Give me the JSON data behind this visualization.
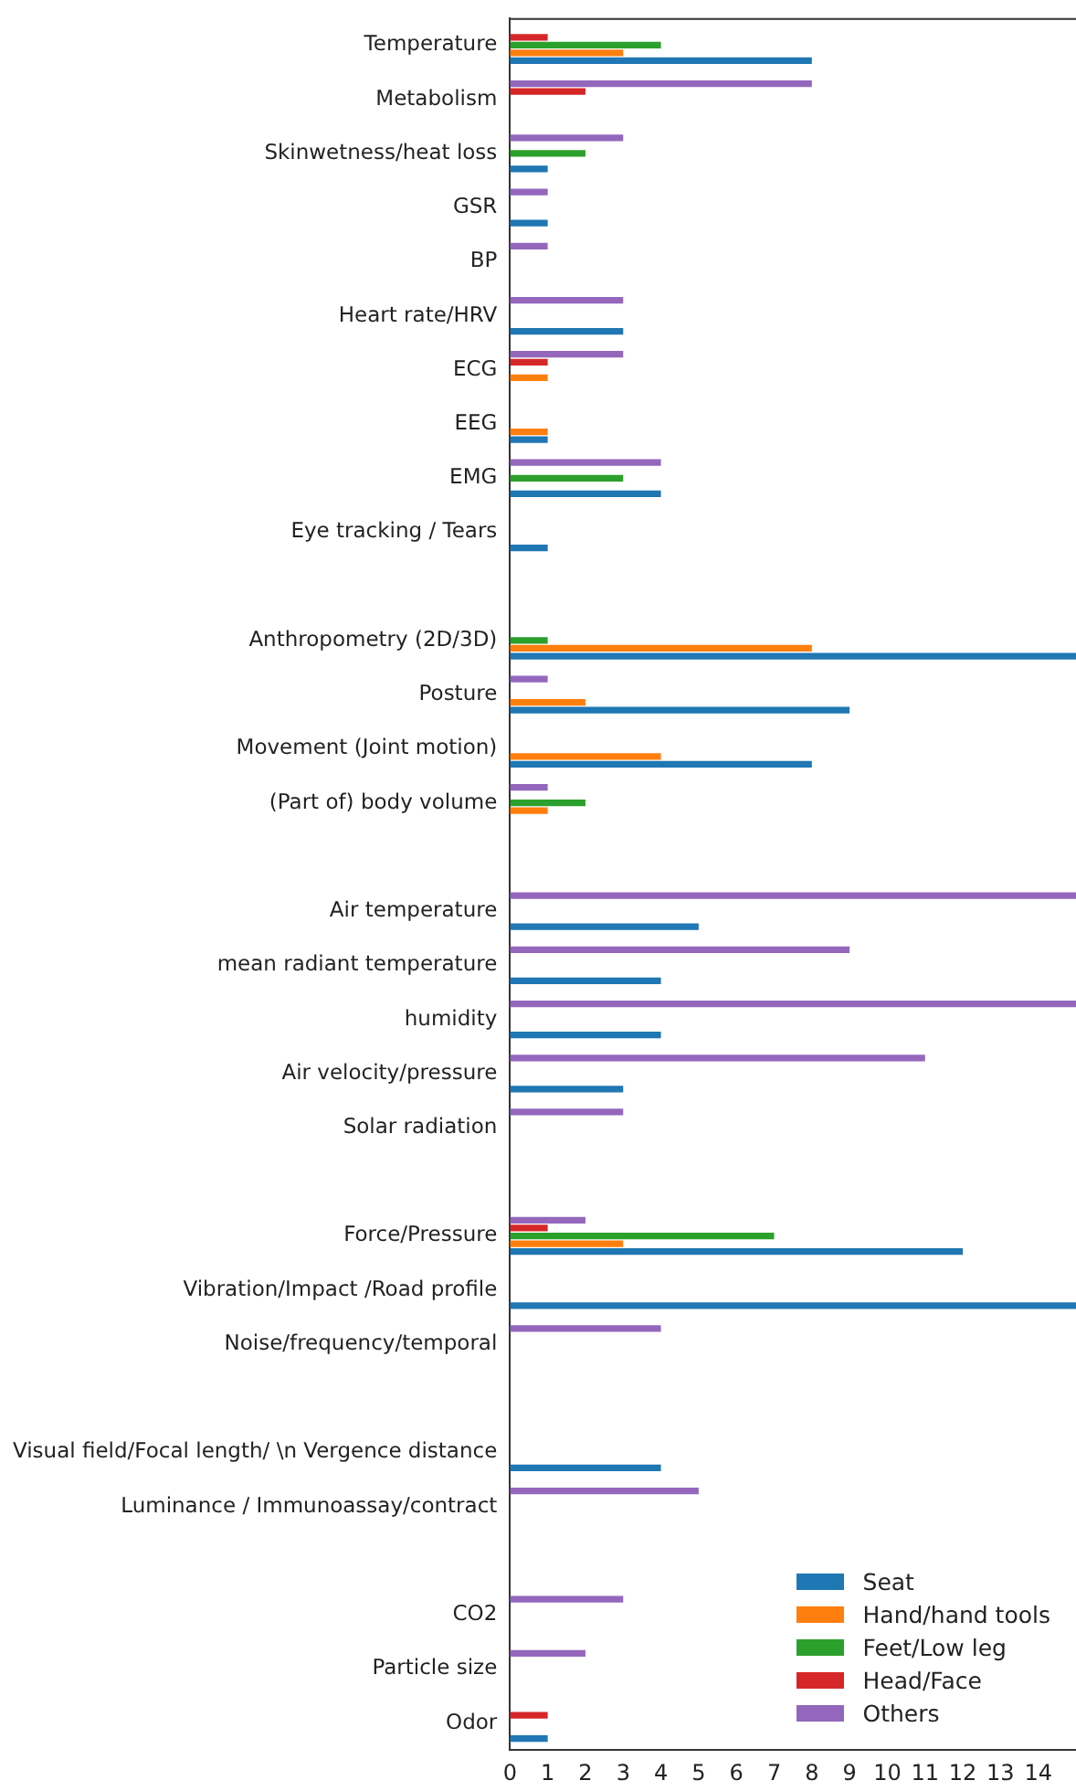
{
  "chart_data": {
    "type": "bar",
    "orientation": "horizontal",
    "categories": [
      "Temperature",
      "Metabolism",
      "Skinwetness/heat loss",
      "GSR",
      "BP",
      "Heart rate/HRV",
      "ECG",
      "EEG",
      "EMG",
      "Eye tracking / Tears",
      null,
      "Anthropometry (2D/3D)",
      "Posture",
      "Movement (Joint motion)",
      "(Part of) body volume",
      null,
      "Air temperature",
      "mean radiant temperature",
      "humidity",
      "Air velocity/pressure",
      "Solar radiation",
      null,
      "Force/Pressure",
      "Vibration/Impact /Road profile",
      "Noise/frequency/temporal",
      null,
      "Visual field/Focal length/ \\n Vergence distance",
      "Luminance / Immunoassay/contract",
      null,
      "CO2",
      "Particle size",
      "Odor"
    ],
    "series": [
      {
        "name": "Seat",
        "color": "#1f77b4",
        "values": [
          8,
          0,
          1,
          1,
          0,
          3,
          0,
          1,
          4,
          1,
          null,
          15,
          9,
          8,
          0,
          null,
          5,
          4,
          4,
          3,
          0,
          null,
          12,
          15,
          0,
          null,
          4,
          0,
          null,
          0,
          0,
          1
        ]
      },
      {
        "name": "Hand/hand tools",
        "color": "#ff7f0e",
        "values": [
          3,
          0,
          0,
          0,
          0,
          0,
          1,
          1,
          0,
          0,
          null,
          8,
          2,
          4,
          1,
          null,
          0,
          0,
          0,
          0,
          0,
          null,
          3,
          0,
          0,
          null,
          0,
          0,
          null,
          0,
          0,
          0
        ]
      },
      {
        "name": "Feet/Low leg",
        "color": "#2ca02c",
        "values": [
          4,
          0,
          2,
          0,
          0,
          0,
          0,
          0,
          3,
          0,
          null,
          1,
          0,
          0,
          2,
          null,
          0,
          0,
          0,
          0,
          0,
          null,
          7,
          0,
          0,
          null,
          0,
          0,
          null,
          0,
          0,
          0
        ]
      },
      {
        "name": "Head/Face",
        "color": "#d62728",
        "values": [
          1,
          2,
          0,
          0,
          0,
          0,
          1,
          0,
          0,
          0,
          null,
          0,
          0,
          0,
          0,
          null,
          0,
          0,
          0,
          0,
          0,
          null,
          1,
          0,
          0,
          null,
          0,
          0,
          null,
          0,
          0,
          1
        ]
      },
      {
        "name": "Others",
        "color": "#9467bd",
        "values": [
          0,
          8,
          3,
          1,
          1,
          3,
          3,
          0,
          4,
          0,
          null,
          0,
          1,
          0,
          1,
          null,
          15,
          9,
          15,
          11,
          3,
          null,
          2,
          0,
          4,
          null,
          0,
          5,
          null,
          3,
          2,
          0
        ]
      }
    ],
    "xlim": [
      0,
      15
    ],
    "xticks": [
      0,
      1,
      2,
      3,
      4,
      5,
      6,
      7,
      8,
      9,
      10,
      11,
      12,
      13,
      14
    ],
    "grid": false,
    "legend": "bottom right"
  }
}
